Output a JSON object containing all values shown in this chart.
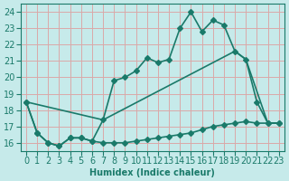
{
  "xlabel": "Humidex (Indice chaleur)",
  "background_color": "#c6eaea",
  "grid_color": "#daa8a8",
  "line_color": "#1a7a6a",
  "xlim": [
    -0.5,
    23.5
  ],
  "ylim": [
    15.5,
    24.5
  ],
  "yticks": [
    16,
    17,
    18,
    19,
    20,
    21,
    22,
    23,
    24
  ],
  "xticks": [
    0,
    1,
    2,
    3,
    4,
    5,
    6,
    7,
    8,
    9,
    10,
    11,
    12,
    13,
    14,
    15,
    16,
    17,
    18,
    19,
    20,
    21,
    22,
    23
  ],
  "series_main_x": [
    0,
    1,
    2,
    3,
    4,
    5,
    6,
    7,
    8,
    9,
    10,
    11,
    12,
    13,
    14,
    15,
    16,
    17,
    18,
    19,
    20,
    21,
    22,
    23
  ],
  "series_main_y": [
    18.5,
    16.6,
    16.0,
    15.8,
    16.3,
    16.3,
    16.1,
    17.4,
    19.8,
    20.0,
    20.4,
    21.2,
    20.9,
    21.1,
    23.0,
    24.0,
    22.8,
    23.5,
    23.2,
    21.6,
    21.1,
    18.5,
    17.2,
    17.2
  ],
  "series_diag_x": [
    0,
    7,
    19,
    20,
    22,
    23
  ],
  "series_diag_y": [
    18.5,
    17.4,
    21.6,
    21.1,
    17.2,
    17.2
  ],
  "series_flat_x": [
    0,
    1,
    2,
    3,
    4,
    5,
    6,
    7,
    8,
    9,
    10,
    11,
    12,
    13,
    14,
    15,
    16,
    17,
    18,
    19,
    20,
    21,
    22,
    23
  ],
  "series_flat_y": [
    18.5,
    16.6,
    16.0,
    15.8,
    16.3,
    16.3,
    16.1,
    16.0,
    16.0,
    16.0,
    16.1,
    16.2,
    16.3,
    16.4,
    16.5,
    16.6,
    16.8,
    17.0,
    17.1,
    17.2,
    17.3,
    17.2,
    17.2,
    17.2
  ],
  "marker": "D",
  "markersize": 3,
  "linewidth": 1.2,
  "fontsize": 7
}
